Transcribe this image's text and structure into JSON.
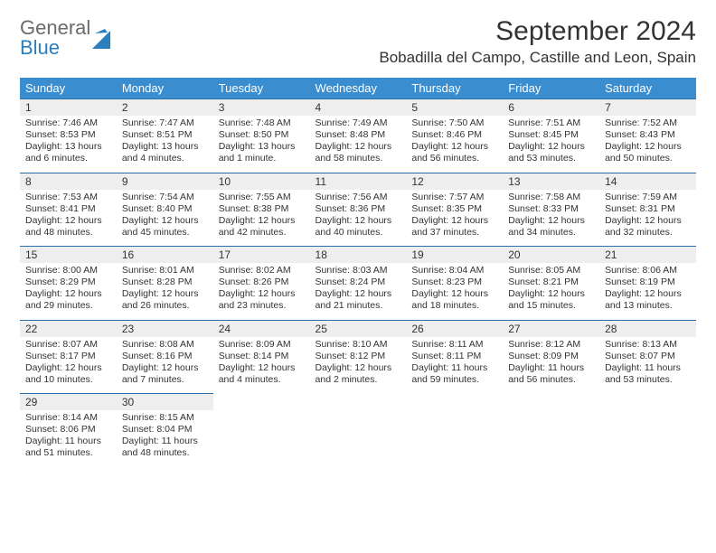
{
  "logo": {
    "text_gray": "General",
    "text_blue": "Blue"
  },
  "header": {
    "month_title": "September 2024",
    "location": "Bobadilla del Campo, Castille and Leon, Spain"
  },
  "colors": {
    "header_bg": "#3a8dce",
    "header_text": "#ffffff",
    "daynum_bg": "#eeeeee",
    "daynum_border": "#2b6fa8",
    "body_text": "#333333",
    "logo_gray": "#6b6b6b",
    "logo_blue": "#2b7fbf",
    "page_bg": "#ffffff"
  },
  "weekdays": [
    "Sunday",
    "Monday",
    "Tuesday",
    "Wednesday",
    "Thursday",
    "Friday",
    "Saturday"
  ],
  "weeks": [
    [
      {
        "num": "1",
        "sunrise": "Sunrise: 7:46 AM",
        "sunset": "Sunset: 8:53 PM",
        "daylight": "Daylight: 13 hours and 6 minutes."
      },
      {
        "num": "2",
        "sunrise": "Sunrise: 7:47 AM",
        "sunset": "Sunset: 8:51 PM",
        "daylight": "Daylight: 13 hours and 4 minutes."
      },
      {
        "num": "3",
        "sunrise": "Sunrise: 7:48 AM",
        "sunset": "Sunset: 8:50 PM",
        "daylight": "Daylight: 13 hours and 1 minute."
      },
      {
        "num": "4",
        "sunrise": "Sunrise: 7:49 AM",
        "sunset": "Sunset: 8:48 PM",
        "daylight": "Daylight: 12 hours and 58 minutes."
      },
      {
        "num": "5",
        "sunrise": "Sunrise: 7:50 AM",
        "sunset": "Sunset: 8:46 PM",
        "daylight": "Daylight: 12 hours and 56 minutes."
      },
      {
        "num": "6",
        "sunrise": "Sunrise: 7:51 AM",
        "sunset": "Sunset: 8:45 PM",
        "daylight": "Daylight: 12 hours and 53 minutes."
      },
      {
        "num": "7",
        "sunrise": "Sunrise: 7:52 AM",
        "sunset": "Sunset: 8:43 PM",
        "daylight": "Daylight: 12 hours and 50 minutes."
      }
    ],
    [
      {
        "num": "8",
        "sunrise": "Sunrise: 7:53 AM",
        "sunset": "Sunset: 8:41 PM",
        "daylight": "Daylight: 12 hours and 48 minutes."
      },
      {
        "num": "9",
        "sunrise": "Sunrise: 7:54 AM",
        "sunset": "Sunset: 8:40 PM",
        "daylight": "Daylight: 12 hours and 45 minutes."
      },
      {
        "num": "10",
        "sunrise": "Sunrise: 7:55 AM",
        "sunset": "Sunset: 8:38 PM",
        "daylight": "Daylight: 12 hours and 42 minutes."
      },
      {
        "num": "11",
        "sunrise": "Sunrise: 7:56 AM",
        "sunset": "Sunset: 8:36 PM",
        "daylight": "Daylight: 12 hours and 40 minutes."
      },
      {
        "num": "12",
        "sunrise": "Sunrise: 7:57 AM",
        "sunset": "Sunset: 8:35 PM",
        "daylight": "Daylight: 12 hours and 37 minutes."
      },
      {
        "num": "13",
        "sunrise": "Sunrise: 7:58 AM",
        "sunset": "Sunset: 8:33 PM",
        "daylight": "Daylight: 12 hours and 34 minutes."
      },
      {
        "num": "14",
        "sunrise": "Sunrise: 7:59 AM",
        "sunset": "Sunset: 8:31 PM",
        "daylight": "Daylight: 12 hours and 32 minutes."
      }
    ],
    [
      {
        "num": "15",
        "sunrise": "Sunrise: 8:00 AM",
        "sunset": "Sunset: 8:29 PM",
        "daylight": "Daylight: 12 hours and 29 minutes."
      },
      {
        "num": "16",
        "sunrise": "Sunrise: 8:01 AM",
        "sunset": "Sunset: 8:28 PM",
        "daylight": "Daylight: 12 hours and 26 minutes."
      },
      {
        "num": "17",
        "sunrise": "Sunrise: 8:02 AM",
        "sunset": "Sunset: 8:26 PM",
        "daylight": "Daylight: 12 hours and 23 minutes."
      },
      {
        "num": "18",
        "sunrise": "Sunrise: 8:03 AM",
        "sunset": "Sunset: 8:24 PM",
        "daylight": "Daylight: 12 hours and 21 minutes."
      },
      {
        "num": "19",
        "sunrise": "Sunrise: 8:04 AM",
        "sunset": "Sunset: 8:23 PM",
        "daylight": "Daylight: 12 hours and 18 minutes."
      },
      {
        "num": "20",
        "sunrise": "Sunrise: 8:05 AM",
        "sunset": "Sunset: 8:21 PM",
        "daylight": "Daylight: 12 hours and 15 minutes."
      },
      {
        "num": "21",
        "sunrise": "Sunrise: 8:06 AM",
        "sunset": "Sunset: 8:19 PM",
        "daylight": "Daylight: 12 hours and 13 minutes."
      }
    ],
    [
      {
        "num": "22",
        "sunrise": "Sunrise: 8:07 AM",
        "sunset": "Sunset: 8:17 PM",
        "daylight": "Daylight: 12 hours and 10 minutes."
      },
      {
        "num": "23",
        "sunrise": "Sunrise: 8:08 AM",
        "sunset": "Sunset: 8:16 PM",
        "daylight": "Daylight: 12 hours and 7 minutes."
      },
      {
        "num": "24",
        "sunrise": "Sunrise: 8:09 AM",
        "sunset": "Sunset: 8:14 PM",
        "daylight": "Daylight: 12 hours and 4 minutes."
      },
      {
        "num": "25",
        "sunrise": "Sunrise: 8:10 AM",
        "sunset": "Sunset: 8:12 PM",
        "daylight": "Daylight: 12 hours and 2 minutes."
      },
      {
        "num": "26",
        "sunrise": "Sunrise: 8:11 AM",
        "sunset": "Sunset: 8:11 PM",
        "daylight": "Daylight: 11 hours and 59 minutes."
      },
      {
        "num": "27",
        "sunrise": "Sunrise: 8:12 AM",
        "sunset": "Sunset: 8:09 PM",
        "daylight": "Daylight: 11 hours and 56 minutes."
      },
      {
        "num": "28",
        "sunrise": "Sunrise: 8:13 AM",
        "sunset": "Sunset: 8:07 PM",
        "daylight": "Daylight: 11 hours and 53 minutes."
      }
    ],
    [
      {
        "num": "29",
        "sunrise": "Sunrise: 8:14 AM",
        "sunset": "Sunset: 8:06 PM",
        "daylight": "Daylight: 11 hours and 51 minutes."
      },
      {
        "num": "30",
        "sunrise": "Sunrise: 8:15 AM",
        "sunset": "Sunset: 8:04 PM",
        "daylight": "Daylight: 11 hours and 48 minutes."
      },
      null,
      null,
      null,
      null,
      null
    ]
  ]
}
